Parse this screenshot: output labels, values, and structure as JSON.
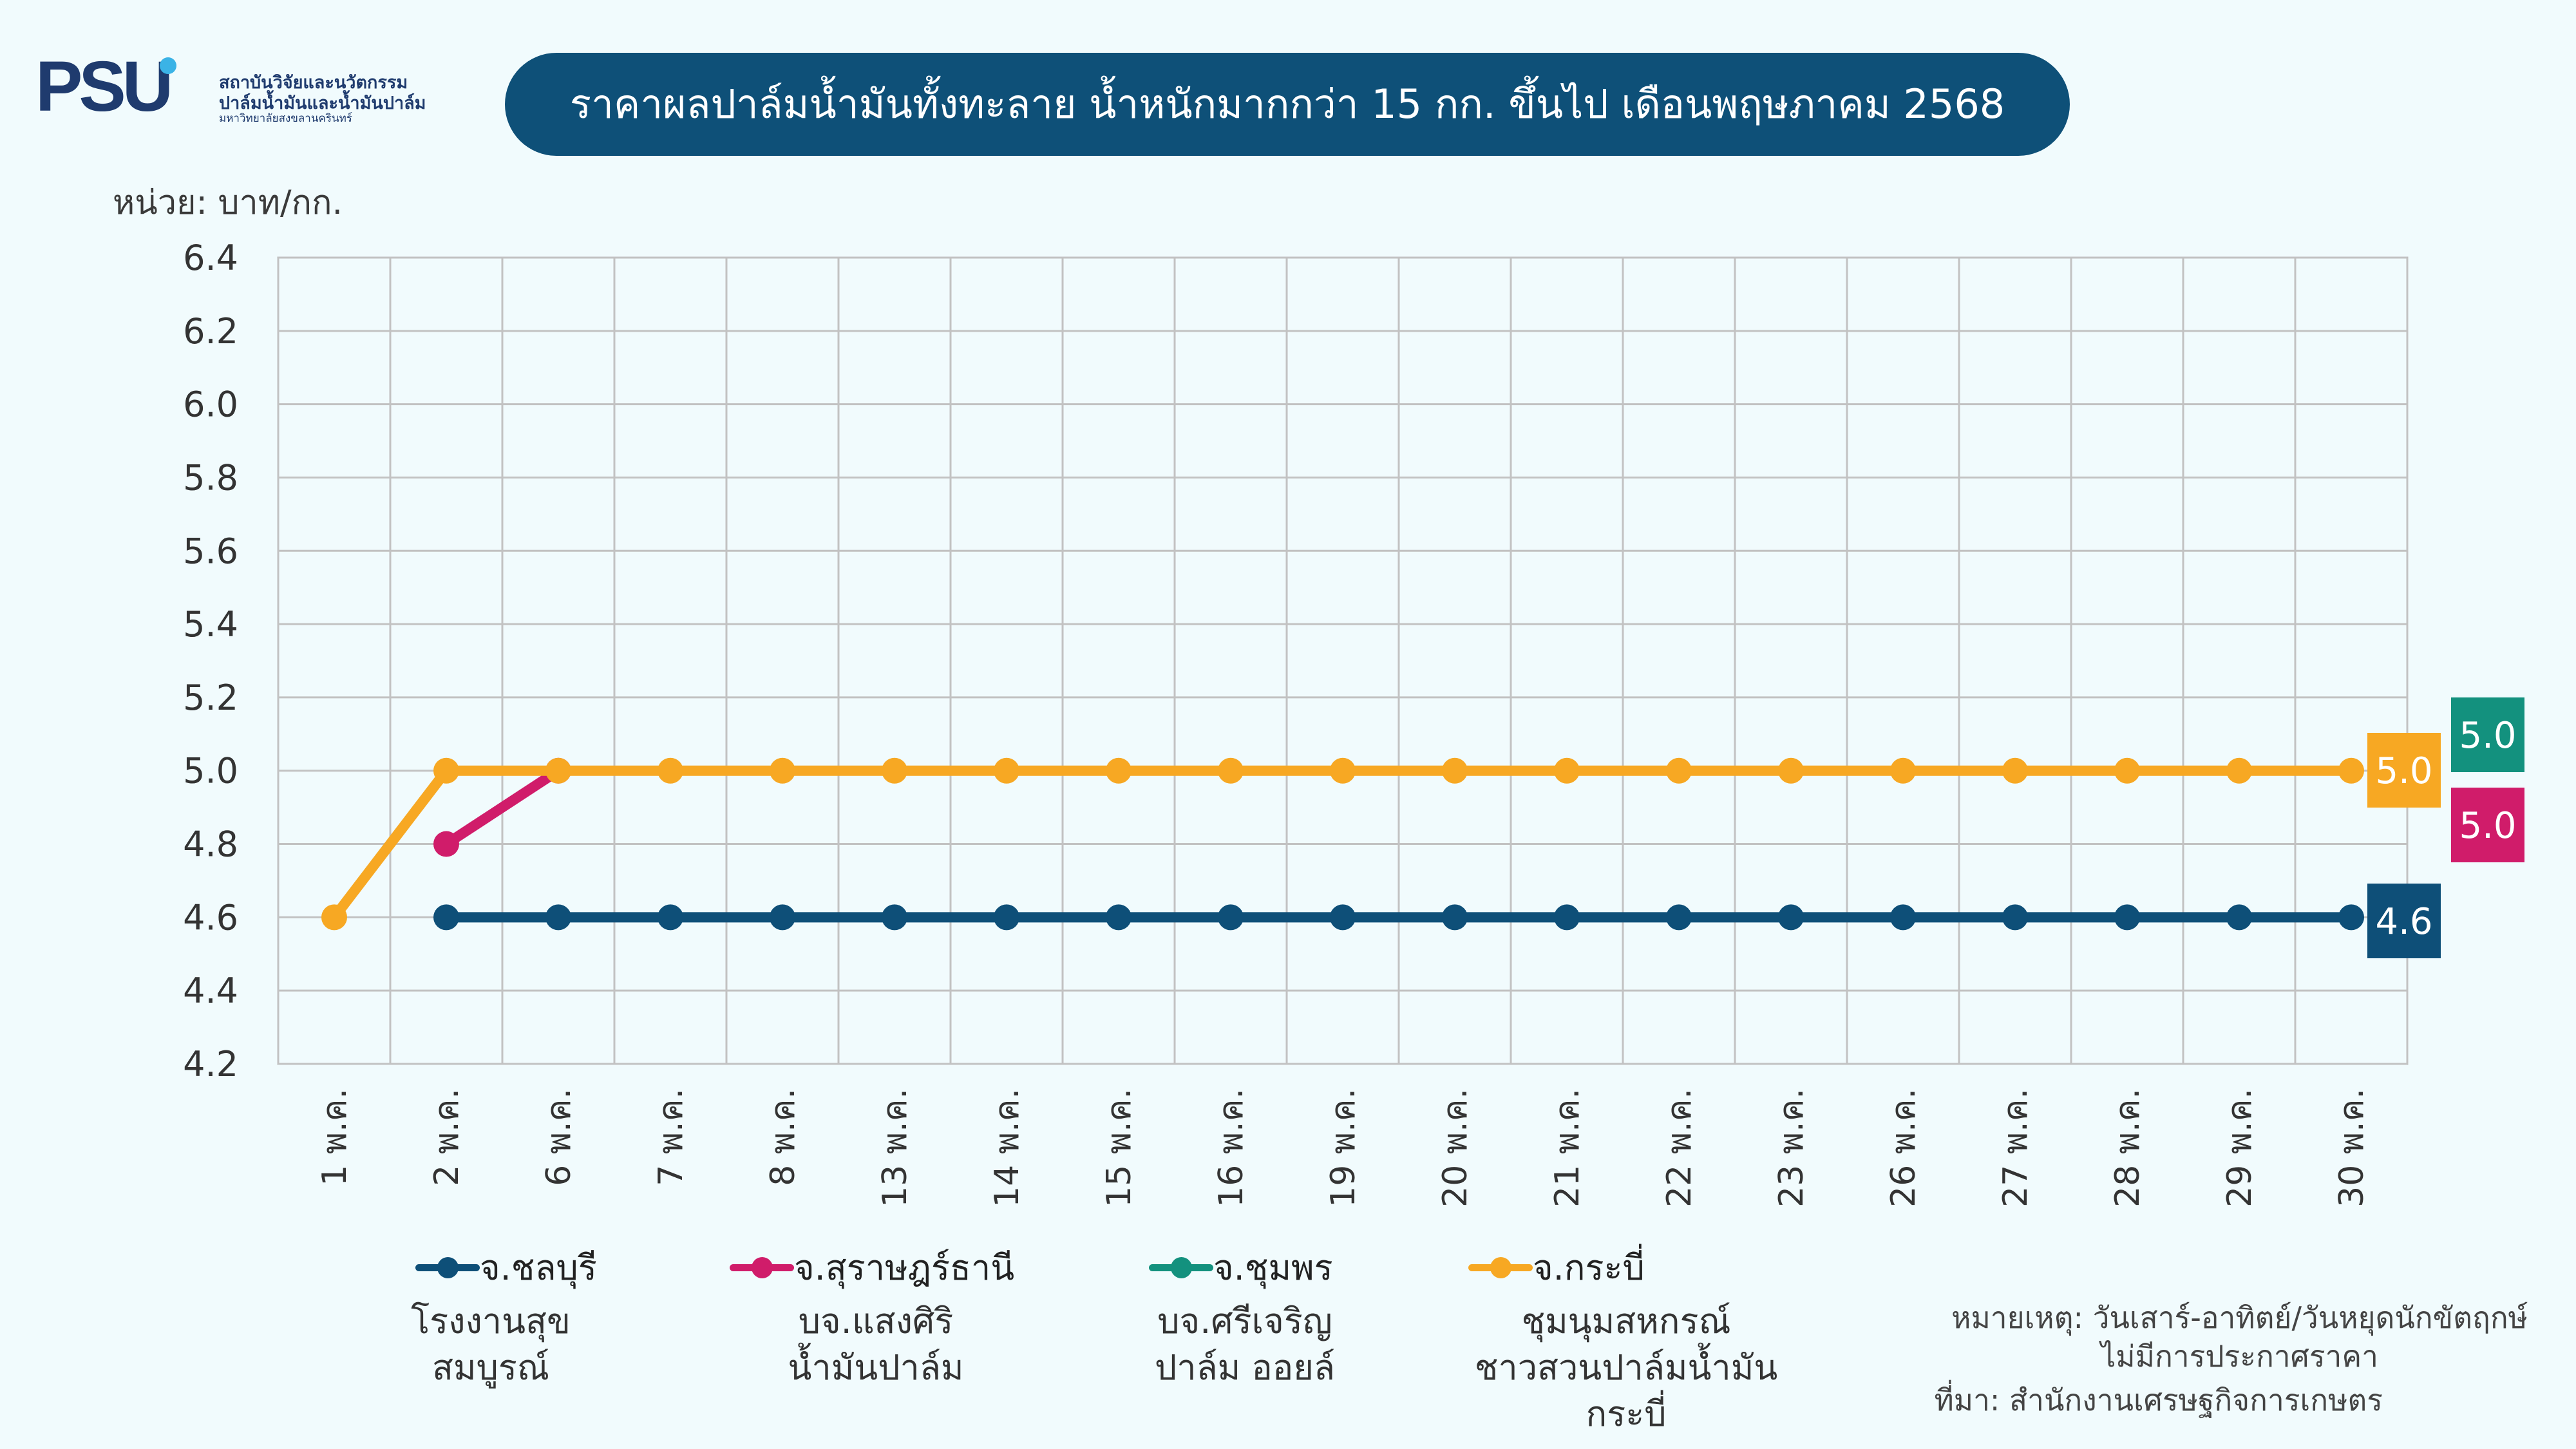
{
  "logo": {
    "mark": "PSU",
    "line1": "สถาบันวิจัยและนวัตกรรม",
    "line2": "ปาล์มน้ำมันและน้ำมันปาล์ม",
    "line3": "มหาวิทยาลัยสงขลานครินทร์",
    "color": "#1f3b6e",
    "dot_color": "#3bb3e6"
  },
  "title": "ราคาผลปาล์มน้ำมันทั้งทะลาย น้ำหนักมากกว่า 15 กก. ขึ้นไป เดือนพฤษภาคม 2568",
  "unit": "หน่วย: บาท/กก.",
  "chart_data": {
    "type": "line",
    "categories": [
      "1 พ.ค.",
      "2 พ.ค.",
      "6 พ.ค.",
      "7 พ.ค.",
      "8 พ.ค.",
      "13 พ.ค.",
      "14 พ.ค.",
      "15 พ.ค.",
      "16 พ.ค.",
      "19 พ.ค.",
      "20 พ.ค.",
      "21 พ.ค.",
      "22 พ.ค.",
      "23 พ.ค.",
      "26 พ.ค.",
      "27 พ.ค.",
      "28 พ.ค.",
      "29 พ.ค.",
      "30 พ.ค."
    ],
    "ylim": [
      4.2,
      6.4
    ],
    "yticks": [
      "4.2",
      "4.4",
      "4.6",
      "4.8",
      "5.0",
      "5.2",
      "5.4",
      "5.6",
      "5.8",
      "6.0",
      "6.2",
      "6.4"
    ],
    "grid": true,
    "series": [
      {
        "name": "จ.ชลบุรี",
        "color": "#0e4f78",
        "values": [
          null,
          4.6,
          4.6,
          4.6,
          4.6,
          4.6,
          4.6,
          4.6,
          4.6,
          4.6,
          4.6,
          4.6,
          4.6,
          4.6,
          4.6,
          4.6,
          4.6,
          4.6,
          4.6
        ],
        "end_label": "4.6"
      },
      {
        "name": "จ.สุราษฎร์ธานี",
        "color": "#d01c6a",
        "values": [
          null,
          4.8,
          5.0,
          null,
          null,
          null,
          null,
          null,
          null,
          null,
          null,
          null,
          null,
          null,
          null,
          null,
          null,
          null,
          null
        ],
        "end_label": "5.0"
      },
      {
        "name": "จ.ชุมพร",
        "color": "#13917e",
        "values": [
          null,
          null,
          null,
          null,
          null,
          null,
          null,
          null,
          null,
          null,
          null,
          null,
          null,
          null,
          null,
          null,
          null,
          null,
          null
        ],
        "end_label": "5.0"
      },
      {
        "name": "จ.กระบี่",
        "color": "#f7a823",
        "values": [
          4.6,
          5.0,
          5.0,
          5.0,
          5.0,
          5.0,
          5.0,
          5.0,
          5.0,
          5.0,
          5.0,
          5.0,
          5.0,
          5.0,
          5.0,
          5.0,
          5.0,
          5.0,
          5.0
        ],
        "end_label": "5.0"
      }
    ],
    "legend_sub": [
      "โรงงานสุข\nสมบูรณ์",
      "บจ.แสงศิริ\nน้ำมันปาล์ม",
      "บจ.ศรีเจริญ\nปาล์ม ออยล์",
      "ชุมนุมสหกรณ์\nชาวสวนปาล์มน้ำมัน\nกระบี่"
    ]
  },
  "note": {
    "line1": "หมายเหตุ: วันเสาร์-อาทิตย์/วันหยุดนักขัตฤกษ์",
    "line2": "ไม่มีการประกาศราคา",
    "source": "ที่มา: สำนักงานเศรษฐกิจการเกษตร"
  }
}
